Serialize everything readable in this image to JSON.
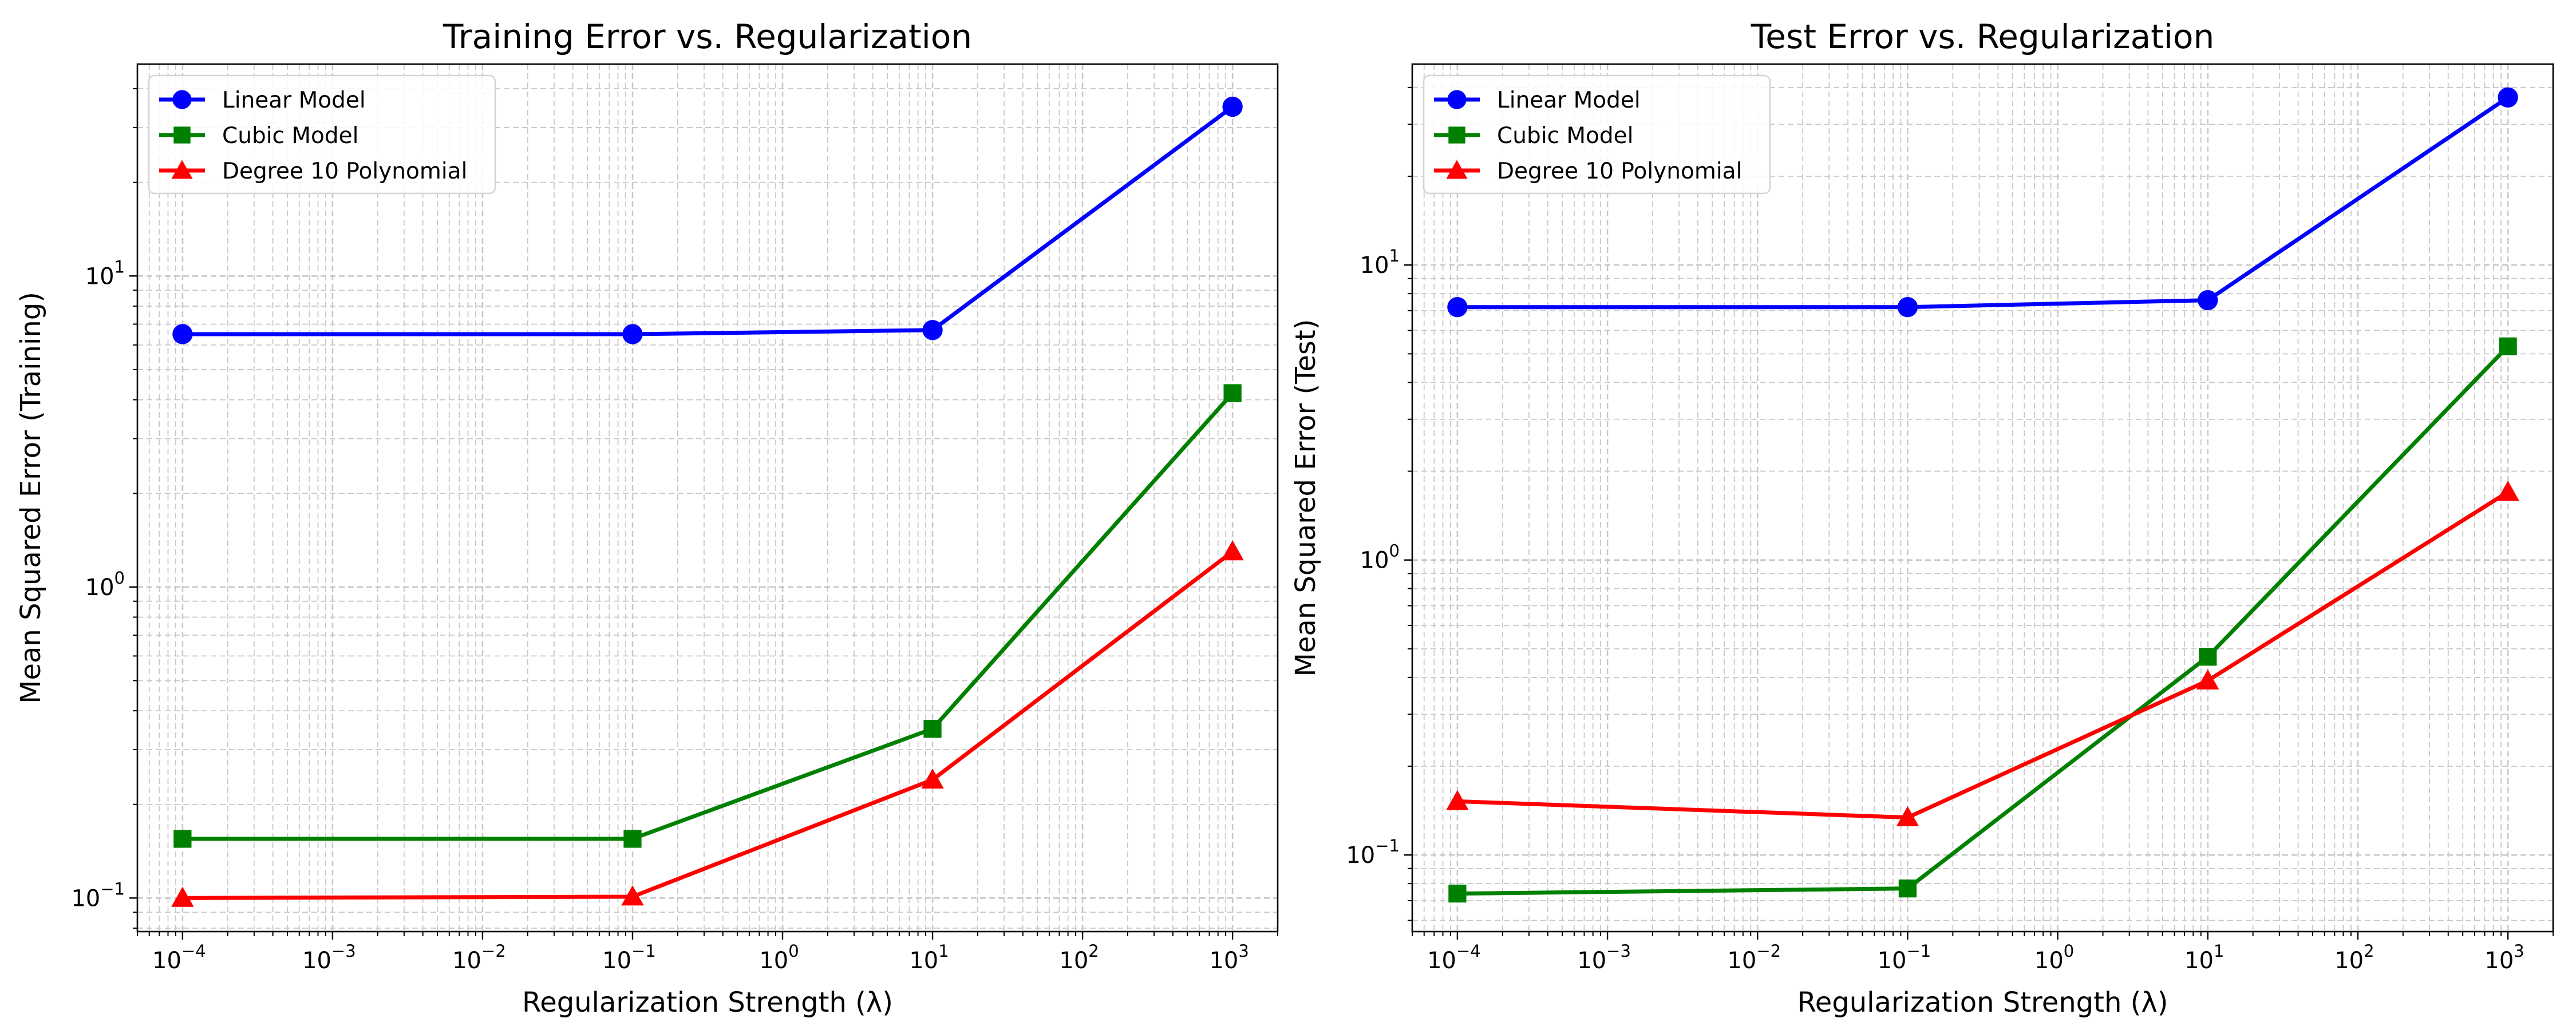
{
  "chart_data": [
    {
      "type": "line",
      "title": "Training Error vs. Regularization",
      "xlabel": "Regularization Strength (λ)",
      "ylabel": "Mean Squared Error (Training)",
      "xscale": "log",
      "yscale": "log",
      "xlim": [
        5e-05,
        2000
      ],
      "ylim": [
        0.078,
        48
      ],
      "grid": true,
      "legend_position": "top-left",
      "x": [
        0.0001,
        0.1,
        10,
        1000
      ],
      "x_ticks": [
        {
          "base": "10",
          "exp": "−4"
        },
        {
          "base": "10",
          "exp": "−3"
        },
        {
          "base": "10",
          "exp": "−2"
        },
        {
          "base": "10",
          "exp": "−1"
        },
        {
          "base": "10",
          "exp": "0"
        },
        {
          "base": "10",
          "exp": "1"
        },
        {
          "base": "10",
          "exp": "2"
        },
        {
          "base": "10",
          "exp": "3"
        }
      ],
      "y_ticks": [
        {
          "base": "10",
          "exp": "−1"
        },
        {
          "base": "10",
          "exp": "0"
        },
        {
          "base": "10",
          "exp": "1"
        }
      ],
      "series": [
        {
          "name": "Linear Model",
          "color": "#0000ff",
          "marker": "circle",
          "values": [
            6.5,
            6.5,
            6.7,
            35
          ]
        },
        {
          "name": "Cubic Model",
          "color": "#008000",
          "marker": "square",
          "values": [
            0.155,
            0.155,
            0.35,
            4.2
          ]
        },
        {
          "name": "Degree 10 Polynomial",
          "color": "#ff0000",
          "marker": "triangle",
          "values": [
            0.1,
            0.101,
            0.24,
            1.3
          ]
        }
      ]
    },
    {
      "type": "line",
      "title": "Test Error vs. Regularization",
      "xlabel": "Regularization Strength (λ)",
      "ylabel": "Mean Squared Error (Test)",
      "xscale": "log",
      "yscale": "log",
      "xlim": [
        5e-05,
        2000
      ],
      "ylim": [
        0.055,
        48
      ],
      "grid": true,
      "legend_position": "top-left",
      "x": [
        0.0001,
        0.1,
        10,
        1000
      ],
      "x_ticks": [
        {
          "base": "10",
          "exp": "−4"
        },
        {
          "base": "10",
          "exp": "−3"
        },
        {
          "base": "10",
          "exp": "−2"
        },
        {
          "base": "10",
          "exp": "−1"
        },
        {
          "base": "10",
          "exp": "0"
        },
        {
          "base": "10",
          "exp": "1"
        },
        {
          "base": "10",
          "exp": "2"
        },
        {
          "base": "10",
          "exp": "3"
        }
      ],
      "y_ticks": [
        {
          "base": "10",
          "exp": "−1"
        },
        {
          "base": "10",
          "exp": "0"
        },
        {
          "base": "10",
          "exp": "1"
        }
      ],
      "series": [
        {
          "name": "Linear Model",
          "color": "#0000ff",
          "marker": "circle",
          "values": [
            7.2,
            7.2,
            7.6,
            37
          ]
        },
        {
          "name": "Cubic Model",
          "color": "#008000",
          "marker": "square",
          "values": [
            0.074,
            0.077,
            0.47,
            5.3
          ]
        },
        {
          "name": "Degree 10 Polynomial",
          "color": "#ff0000",
          "marker": "triangle",
          "values": [
            0.152,
            0.134,
            0.39,
            1.7
          ]
        }
      ]
    }
  ]
}
